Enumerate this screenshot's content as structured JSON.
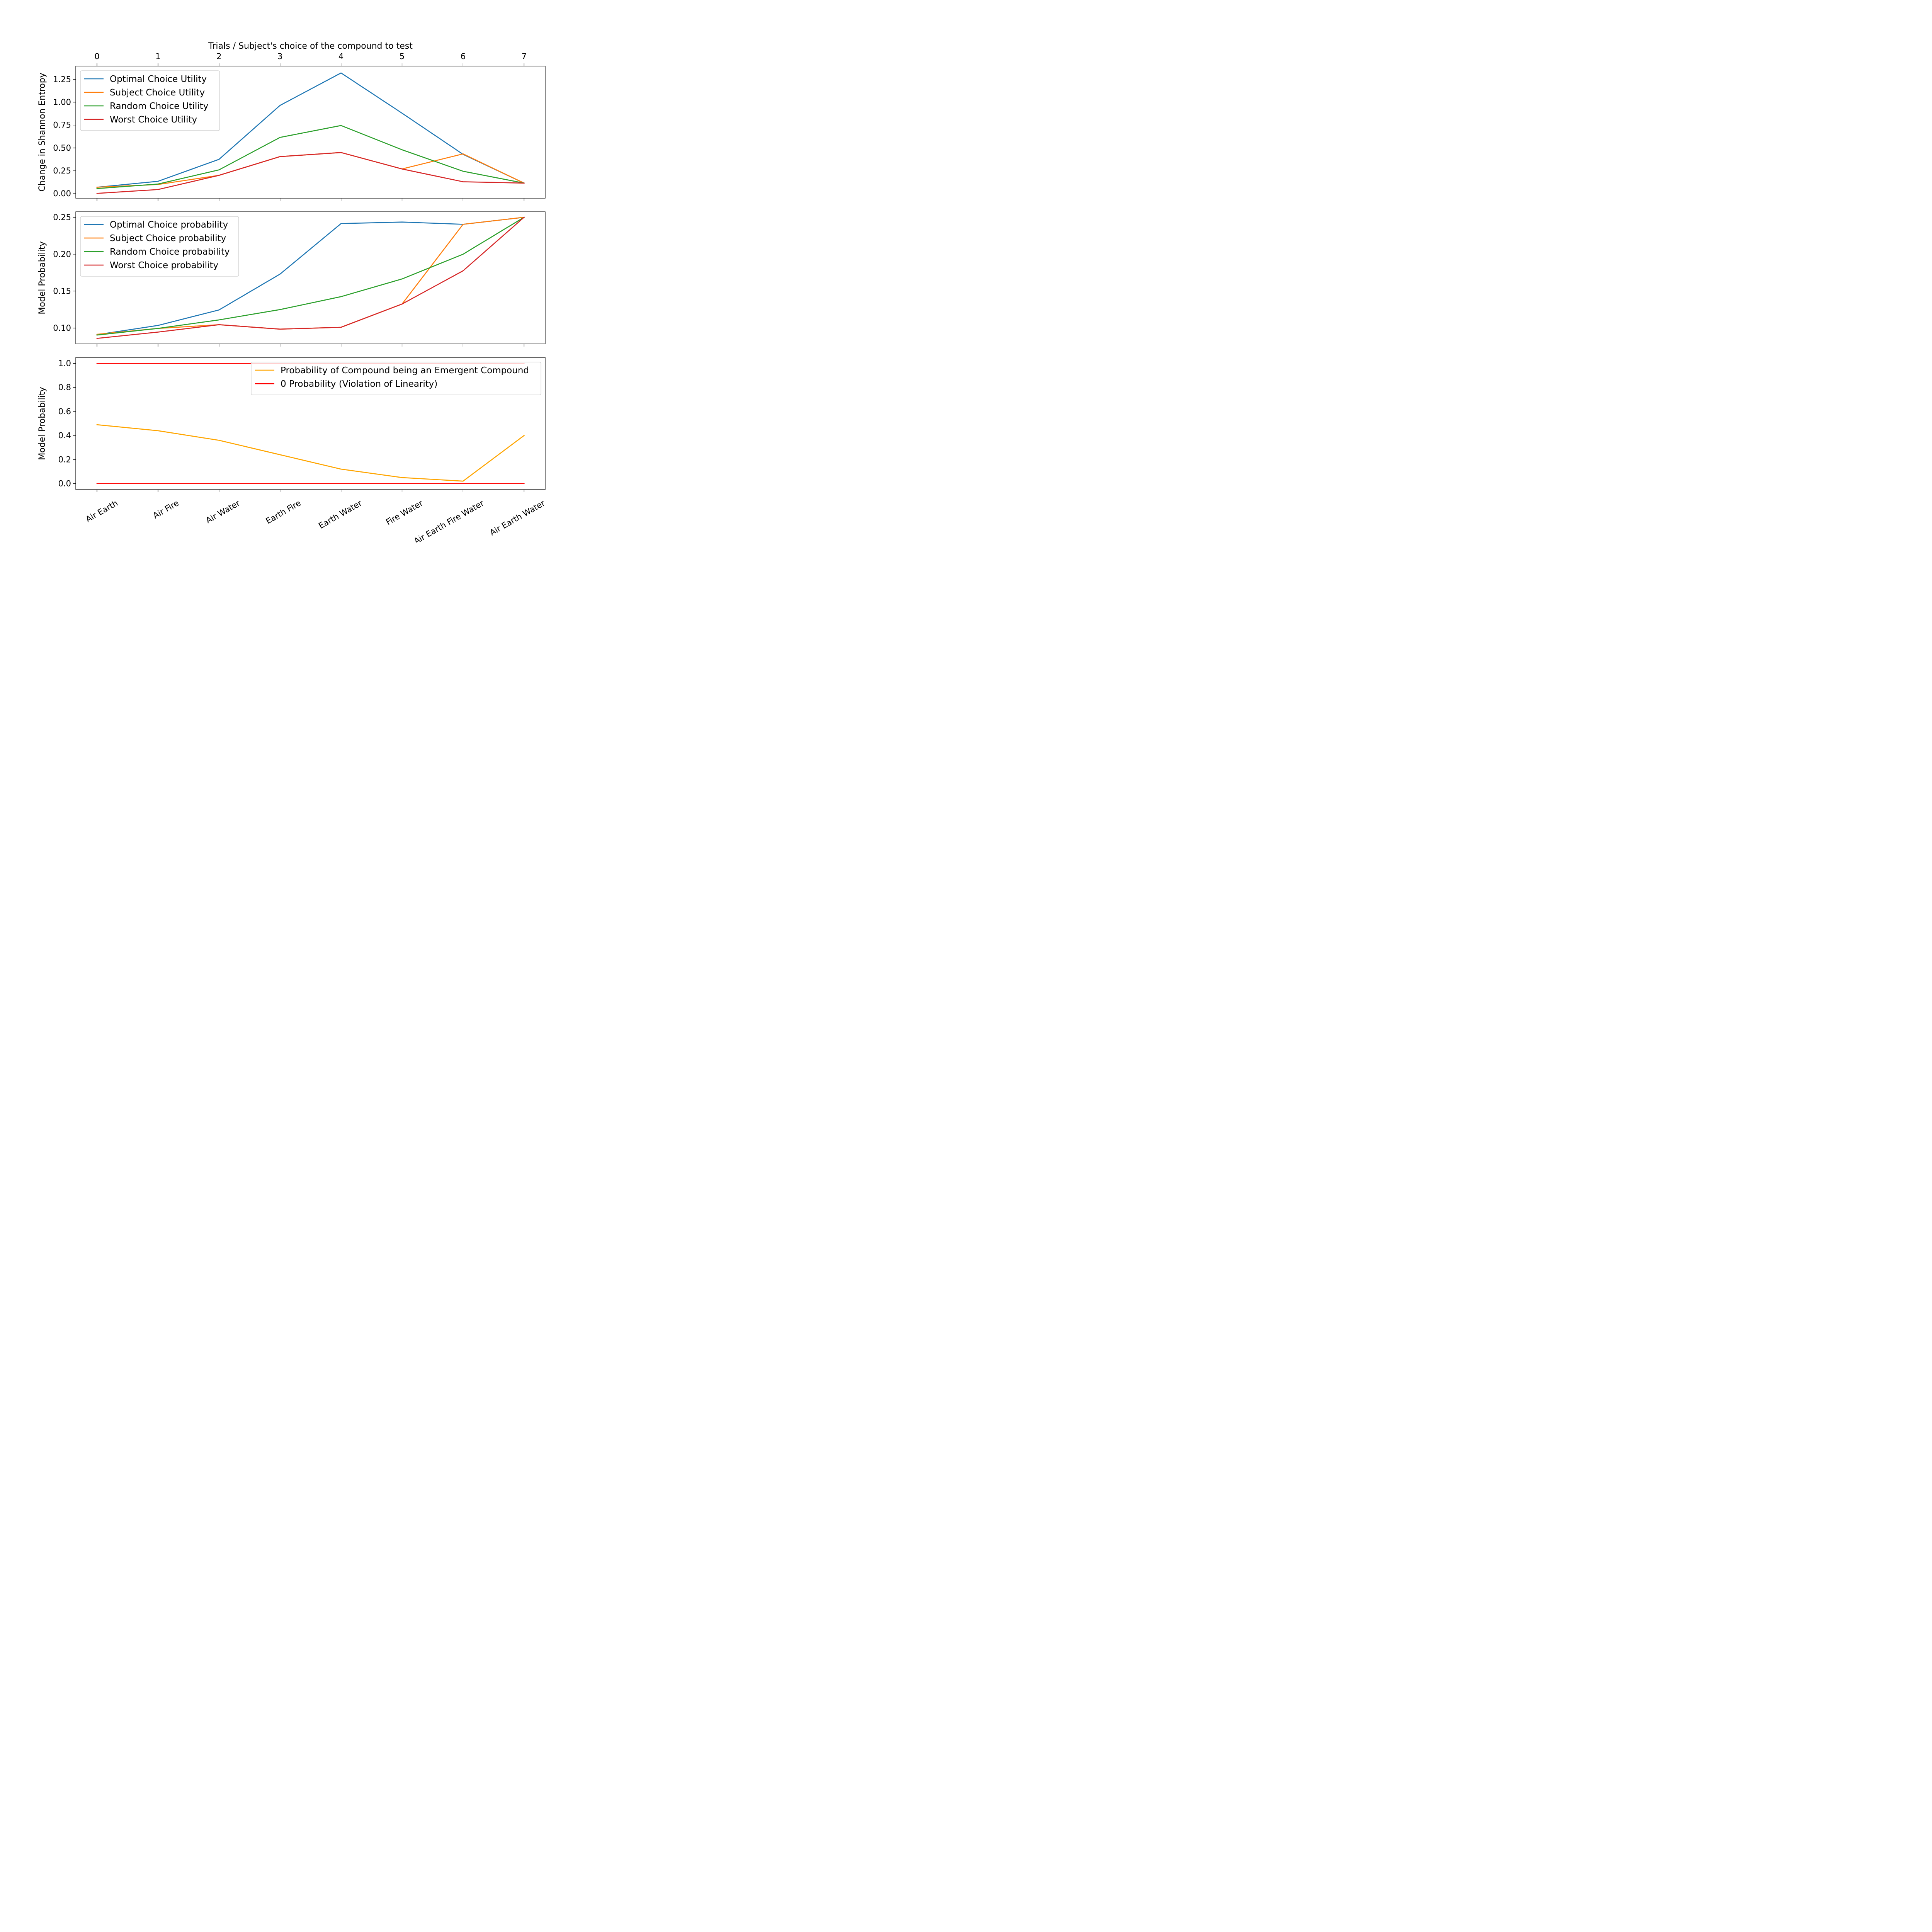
{
  "chart_data": [
    {
      "type": "line",
      "x": [
        0,
        1,
        2,
        3,
        4,
        5,
        6,
        7
      ],
      "top_xlabel": "Trials / Subject's choice of the compound to test",
      "ylabel": "Change in Shannon Entropy",
      "ylim": [
        -0.05,
        1.395
      ],
      "yticks": [
        0.0,
        0.25,
        0.5,
        0.75,
        1.0,
        1.25
      ],
      "ytick_labels": [
        "0.00",
        "0.25",
        "0.50",
        "0.75",
        "1.00",
        "1.25"
      ],
      "top_xtick_labels": [
        "0",
        "1",
        "2",
        "3",
        "4",
        "5",
        "6",
        "7"
      ],
      "legend_position": "upper-left",
      "series": [
        {
          "name": "Optimal Choice Utility",
          "color": "#1f77b4",
          "values": [
            0.07,
            0.135,
            0.375,
            0.965,
            1.32,
            0.88,
            0.43,
            0.115
          ]
        },
        {
          "name": "Subject Choice Utility",
          "color": "#ff7f0e",
          "values": [
            0.07,
            0.1,
            0.2,
            0.405,
            0.45,
            0.27,
            0.435,
            0.115
          ]
        },
        {
          "name": "Random Choice Utility",
          "color": "#2ca02c",
          "values": [
            0.055,
            0.105,
            0.26,
            0.615,
            0.745,
            0.48,
            0.245,
            0.115
          ]
        },
        {
          "name": "Worst Choice Utility",
          "color": "#d62728",
          "values": [
            0.003,
            0.045,
            0.2,
            0.405,
            0.45,
            0.27,
            0.13,
            0.115
          ]
        }
      ]
    },
    {
      "type": "line",
      "x": [
        0,
        1,
        2,
        3,
        4,
        5,
        6,
        7
      ],
      "ylabel": "Model Probability",
      "ylim": [
        0.0785,
        0.2575
      ],
      "yticks": [
        0.1,
        0.15,
        0.2,
        0.25
      ],
      "ytick_labels": [
        "0.10",
        "0.15",
        "0.20",
        "0.25"
      ],
      "legend_position": "upper-left",
      "series": [
        {
          "name": "Optimal Choice probability",
          "color": "#1f77b4",
          "values": [
            0.091,
            0.1035,
            0.1245,
            0.173,
            0.2415,
            0.2435,
            0.2405,
            0.25
          ]
        },
        {
          "name": "Subject Choice probability",
          "color": "#ff7f0e",
          "values": [
            0.0915,
            0.0995,
            0.1045,
            0.0985,
            0.101,
            0.1325,
            0.2405,
            0.25
          ]
        },
        {
          "name": "Random Choice probability",
          "color": "#2ca02c",
          "values": [
            0.0905,
            0.0995,
            0.111,
            0.125,
            0.1425,
            0.1665,
            0.2,
            0.25
          ]
        },
        {
          "name": "Worst Choice probability",
          "color": "#d62728",
          "values": [
            0.086,
            0.0945,
            0.1045,
            0.0985,
            0.101,
            0.1325,
            0.1775,
            0.25
          ]
        }
      ]
    },
    {
      "type": "line",
      "x": [
        0,
        1,
        2,
        3,
        4,
        5,
        6,
        7
      ],
      "ylabel": "Model Probability",
      "ylim": [
        -0.05,
        1.05
      ],
      "yticks": [
        0.0,
        0.2,
        0.4,
        0.6,
        0.8,
        1.0
      ],
      "ytick_labels": [
        "0.0",
        "0.2",
        "0.4",
        "0.6",
        "0.8",
        "1.0"
      ],
      "categories": [
        "Air Earth",
        "Air Fire",
        "Air Water",
        "Earth Fire",
        "Earth Water",
        "Fire Water",
        "Air Earth Fire Water",
        "Air Earth Water"
      ],
      "legend_position": "upper-right",
      "series": [
        {
          "name": "Probability of Compound being an Emergent Compound",
          "color": "#ffa500",
          "values": [
            0.49,
            0.44,
            0.36,
            0.24,
            0.12,
            0.05,
            0.02,
            0.4
          ]
        },
        {
          "name": "0 Probability (Violation of Linearity)",
          "color": "#ff0000",
          "values": [
            0.0,
            0.0,
            0.0,
            0.0,
            0.0,
            0.0,
            0.0,
            0.0
          ]
        },
        {
          "name": "",
          "color": "#ff0000",
          "values": [
            1.0,
            1.0,
            1.0,
            1.0,
            1.0,
            1.0,
            1.0,
            1.0
          ]
        }
      ]
    }
  ]
}
